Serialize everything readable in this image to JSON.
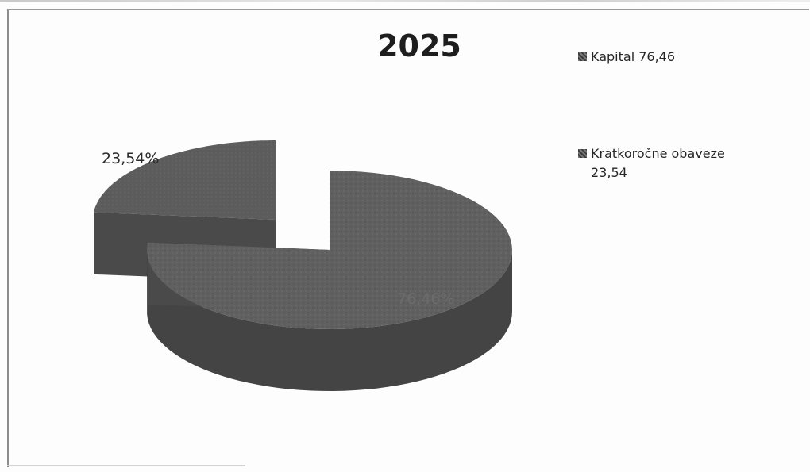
{
  "chart_data": {
    "type": "pie",
    "title": "2025",
    "categories": [
      "Kapital",
      "Kratkoročne obaveze"
    ],
    "values": [
      76.46,
      23.54
    ],
    "data_labels": [
      "76,46%",
      "23,54%"
    ],
    "legend": [
      "Kapital 76,46",
      "Kratkoročne obaveze\n23,54"
    ],
    "legend_position": "right",
    "style": "3d-exploded",
    "colors": [
      "#5f5f5f",
      "#5a5a5a"
    ]
  }
}
